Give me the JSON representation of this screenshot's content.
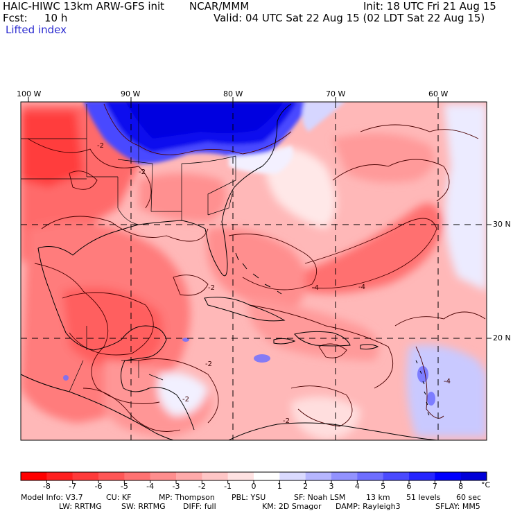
{
  "header": {
    "model": "HAIC-HIWC 13km ARW-GFS init",
    "org": "NCAR/MMM",
    "init": "Init: 18 UTC Fri 21 Aug 15",
    "fcst_label": "Fcst:",
    "fcst_value": "10 h",
    "valid": "Valid: 04 UTC Sat 22 Aug 15 (02 LDT Sat 22 Aug 15)",
    "field": "Lifted index"
  },
  "map": {
    "lon_labels": [
      "100 W",
      "90 W",
      "80 W",
      "70 W",
      "60 W"
    ],
    "lat_labels": [
      "30 N",
      "20 N"
    ],
    "contour_labels": [
      "-2",
      "-2",
      "-4",
      "-2",
      "-4",
      "-2",
      "-2",
      "-2",
      "-4"
    ]
  },
  "colorbar": {
    "labels": [
      "-8",
      "-7",
      "-6",
      "-5",
      "-4",
      "-3",
      "-2",
      "-1",
      "0",
      "1",
      "2",
      "3",
      "4",
      "5",
      "6",
      "7",
      "8"
    ],
    "unit": "°C",
    "colors": [
      "#ff0000",
      "#ff1f1f",
      "#ff3a3a",
      "#ff5656",
      "#ff7272",
      "#ff8e8e",
      "#ffaaaa",
      "#ffc6c6",
      "#ffe2e2",
      "#ffffff",
      "#dadaff",
      "#b6b6ff",
      "#9292ff",
      "#6e6eff",
      "#4a4aff",
      "#2626ff",
      "#0000ff",
      "#0000d8"
    ]
  },
  "footer": {
    "line1": [
      "Model Info: V3.7",
      "CU: KF",
      "MP: Thompson",
      "PBL: YSU",
      "SF: Noah LSM",
      "13 km",
      "51 levels",
      "60 sec"
    ],
    "line2": [
      "LW: RRTMG",
      "SW: RRTMG",
      "DIFF: full",
      "KM: 2D Smagor",
      "DAMP: Rayleigh3",
      "SFLAY: MM5"
    ]
  }
}
